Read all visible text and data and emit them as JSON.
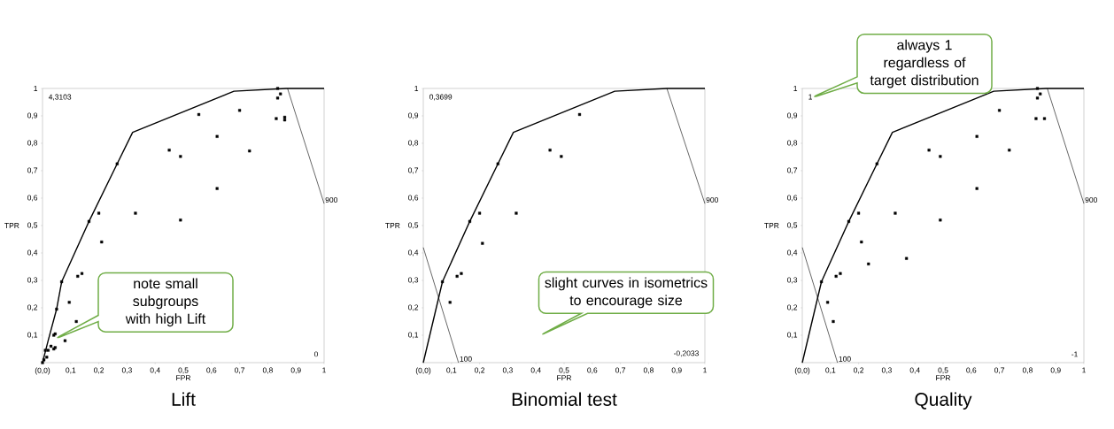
{
  "chart_data": [
    {
      "type": "scatter",
      "title": "Lift",
      "xlabel": "FPR",
      "ylabel": "TPR",
      "xlim": [
        0,
        1
      ],
      "ylim": [
        0,
        1
      ],
      "xticks": [
        {
          "value": 0,
          "label": "(0,0)"
        },
        {
          "value": 0.1,
          "label": "0,1"
        },
        {
          "value": 0.2,
          "label": "0,2"
        },
        {
          "value": 0.3,
          "label": "0,3"
        },
        {
          "value": 0.4,
          "label": "0,4"
        },
        {
          "value": 0.5,
          "label": "0,5"
        },
        {
          "value": 0.6,
          "label": "0,6"
        },
        {
          "value": 0.7,
          "label": "0,7"
        },
        {
          "value": 0.8,
          "label": "0,8"
        },
        {
          "value": 0.9,
          "label": "0,9"
        },
        1
      ],
      "yticks": [
        {
          "value": 0,
          "label": null
        },
        {
          "value": 0.1,
          "label": "0,1"
        },
        {
          "value": 0.2,
          "label": "0,2"
        },
        {
          "value": 0.3,
          "label": "0,3"
        },
        {
          "value": 0.4,
          "label": "0,4"
        },
        {
          "value": 0.5,
          "label": "0,5"
        },
        {
          "value": 0.6,
          "label": "0,6"
        },
        {
          "value": 0.7,
          "label": "0,7"
        },
        {
          "value": 0.8,
          "label": "0,8"
        },
        {
          "value": 0.9,
          "label": "0,9"
        },
        1
      ],
      "annotations": [
        "4,3103",
        "0",
        "note small subgroups with high Lift"
      ],
      "series": [
        {
          "marker": "square",
          "color": "#000000",
          "x": [
            0.0,
            0.005,
            0.01,
            0.015,
            0.02,
            0.03,
            0.04,
            0.045,
            0.04,
            0.045,
            0.05,
            0.068,
            0.08,
            0.095,
            0.12,
            0.125,
            0.14,
            0.165,
            0.2,
            0.21,
            0.265,
            0.33,
            0.45,
            0.49,
            0.49,
            0.555,
            0.62,
            0.62,
            0.7,
            0.735,
            0.83,
            0.835,
            0.835,
            0.845,
            0.86,
            0.86
          ],
          "values": [
            0.0,
            0.01,
            0.045,
            0.02,
            0.045,
            0.06,
            0.05,
            0.055,
            0.1,
            0.105,
            0.195,
            0.295,
            0.08,
            0.22,
            0.15,
            0.315,
            0.325,
            0.515,
            0.545,
            0.44,
            0.725,
            0.545,
            0.775,
            0.752,
            0.52,
            0.905,
            0.825,
            0.635,
            0.92,
            0.772,
            0.89,
            0.965,
            1.0,
            0.98,
            0.895,
            0.885
          ]
        },
        {
          "type": "line",
          "color": "#000000",
          "x": [
            0,
            0.02,
            0.05,
            0.068,
            0.165,
            0.265,
            0.32,
            0.68,
            0.865,
            1
          ],
          "values": [
            0,
            0.08,
            0.195,
            0.295,
            0.515,
            0.725,
            0.84,
            0.99,
            1,
            1
          ]
        },
        {
          "type": "line",
          "name": "900",
          "color": "#000000",
          "x": [
            0.87,
            1
          ],
          "values": [
            1,
            0.58
          ]
        }
      ]
    },
    {
      "type": "scatter",
      "title": "Binomial test",
      "xlabel": "FPR",
      "ylabel": "TPR",
      "xlim": [
        0,
        1
      ],
      "ylim": [
        0,
        1
      ],
      "xticks": [
        {
          "value": 0,
          "label": "(0,0)"
        },
        {
          "value": 0.1,
          "label": "0,1"
        },
        {
          "value": 0.2,
          "label": "0,2"
        },
        {
          "value": 0.3,
          "label": "0,3"
        },
        {
          "value": 0.4,
          "label": "0,4"
        },
        {
          "value": 0.5,
          "label": "0,5"
        },
        {
          "value": 0.6,
          "label": "0,6"
        },
        {
          "value": 0.7,
          "label": "0,7"
        },
        {
          "value": 0.8,
          "label": "0,8"
        },
        {
          "value": 0.9,
          "label": "0,9"
        },
        1
      ],
      "yticks": [
        {
          "value": 0,
          "label": null
        },
        {
          "value": 0.1,
          "label": "0,1"
        },
        {
          "value": 0.2,
          "label": "0,2"
        },
        {
          "value": 0.3,
          "label": "0,3"
        },
        {
          "value": 0.4,
          "label": "0,4"
        },
        {
          "value": 0.5,
          "label": "0,5"
        },
        {
          "value": 0.6,
          "label": "0,6"
        },
        {
          "value": 0.7,
          "label": "0,7"
        },
        {
          "value": 0.8,
          "label": "0,8"
        },
        {
          "value": 0.9,
          "label": "0,9"
        },
        1
      ],
      "annotations": [
        "0,3699",
        "-0,2033",
        "slight curves in isometrics to encourage size"
      ],
      "series": [
        {
          "marker": "square",
          "color": "#000000",
          "x": [
            0.068,
            0.095,
            0.12,
            0.135,
            0.165,
            0.2,
            0.21,
            0.265,
            0.33,
            0.45,
            0.49,
            0.555
          ],
          "values": [
            0.295,
            0.22,
            0.315,
            0.325,
            0.515,
            0.545,
            0.435,
            0.725,
            0.545,
            0.775,
            0.752,
            0.905
          ]
        },
        {
          "type": "line",
          "color": "#000000",
          "x": [
            0,
            0.068,
            0.165,
            0.265,
            0.32,
            0.68,
            0.865,
            1
          ],
          "values": [
            0,
            0.295,
            0.515,
            0.725,
            0.84,
            0.99,
            1,
            1
          ]
        },
        {
          "type": "line",
          "name": "900",
          "color": "#000000",
          "x": [
            0.865,
            1
          ],
          "values": [
            1,
            0.58
          ]
        },
        {
          "type": "line",
          "name": "100",
          "color": "#000000",
          "x": [
            0,
            0.125
          ],
          "values": [
            0.42,
            0
          ]
        }
      ]
    },
    {
      "type": "scatter",
      "title": "Quality",
      "xlabel": "FPR",
      "ylabel": "TPR",
      "xlim": [
        0,
        1
      ],
      "ylim": [
        0,
        1
      ],
      "xticks": [
        {
          "value": 0,
          "label": "(0,0)"
        },
        {
          "value": 0.1,
          "label": "0,1"
        },
        {
          "value": 0.2,
          "label": "0,2"
        },
        {
          "value": 0.3,
          "label": "0,3"
        },
        {
          "value": 0.4,
          "label": "0,4"
        },
        {
          "value": 0.5,
          "label": "0,5"
        },
        {
          "value": 0.6,
          "label": "0,6"
        },
        {
          "value": 0.7,
          "label": "0,7"
        },
        {
          "value": 0.8,
          "label": "0,8"
        },
        {
          "value": 0.9,
          "label": "0,9"
        },
        1
      ],
      "yticks": [
        {
          "value": 0,
          "label": null
        },
        {
          "value": 0.1,
          "label": "0,1"
        },
        {
          "value": 0.2,
          "label": "0,2"
        },
        {
          "value": 0.3,
          "label": "0,3"
        },
        {
          "value": 0.4,
          "label": "0,4"
        },
        {
          "value": 0.5,
          "label": "0,5"
        },
        {
          "value": 0.6,
          "label": "0,6"
        },
        {
          "value": 0.7,
          "label": "0,7"
        },
        {
          "value": 0.8,
          "label": "0,8"
        },
        {
          "value": 0.9,
          "label": "0,9"
        },
        1
      ],
      "annotations": [
        "1",
        "-1",
        "always 1 regardless of target distribution"
      ],
      "series": [
        {
          "marker": "square",
          "color": "#000000",
          "x": [
            0.068,
            0.09,
            0.11,
            0.12,
            0.135,
            0.165,
            0.2,
            0.21,
            0.235,
            0.265,
            0.33,
            0.37,
            0.45,
            0.49,
            0.49,
            0.62,
            0.62,
            0.7,
            0.735,
            0.83,
            0.835,
            0.835,
            0.845,
            0.86
          ],
          "values": [
            0.295,
            0.22,
            0.15,
            0.315,
            0.325,
            0.515,
            0.545,
            0.44,
            0.36,
            0.725,
            0.545,
            0.38,
            0.775,
            0.752,
            0.52,
            0.825,
            0.635,
            0.92,
            0.775,
            0.89,
            0.965,
            1.0,
            0.98,
            0.89
          ]
        },
        {
          "type": "line",
          "color": "#000000",
          "x": [
            0,
            0.068,
            0.165,
            0.265,
            0.32,
            0.68,
            0.865,
            1
          ],
          "values": [
            0,
            0.295,
            0.515,
            0.725,
            0.84,
            0.99,
            1,
            1
          ]
        },
        {
          "type": "line",
          "name": "900",
          "color": "#000000",
          "x": [
            0.87,
            1
          ],
          "values": [
            1,
            0.58
          ]
        },
        {
          "type": "line",
          "name": "100",
          "color": "#000000",
          "x": [
            0,
            0.125
          ],
          "values": [
            0.42,
            0
          ]
        }
      ]
    }
  ]
}
